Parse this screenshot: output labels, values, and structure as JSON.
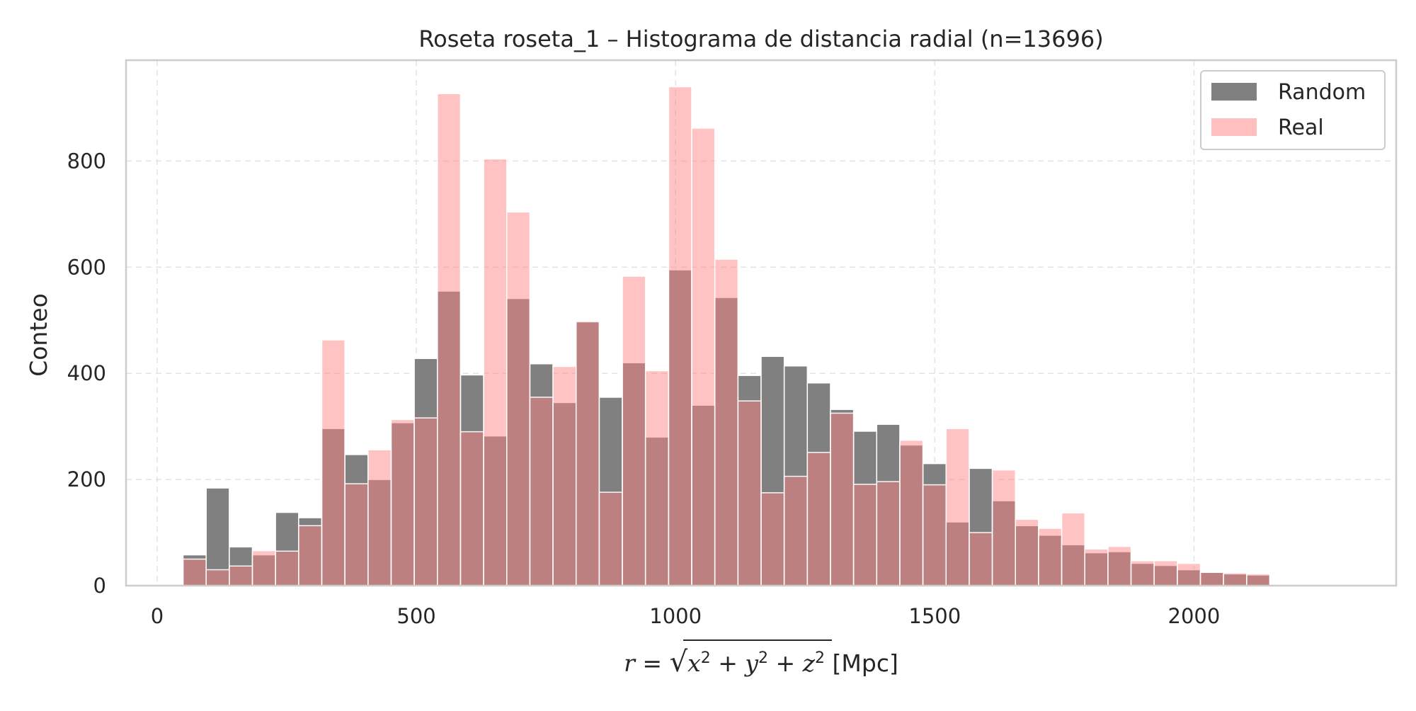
{
  "chart_data": {
    "type": "bar",
    "title": "Roseta roseta_1 – Histograma de distancia radial (n=13696)",
    "xlabel": "r = √(x² + y² + z²) [Mpc]",
    "ylabel": "Conteo",
    "xlim": [
      -60,
      2390
    ],
    "ylim": [
      0,
      990
    ],
    "xticks": [
      0,
      500,
      1000,
      1500,
      2000
    ],
    "yticks": [
      0,
      200,
      400,
      600,
      800
    ],
    "grid": true,
    "legend_position": "top-right",
    "bin_start": 50,
    "bin_width": 44.6,
    "series": [
      {
        "name": "Random",
        "color": "#808080",
        "values": [
          58,
          184,
          73,
          58,
          138,
          128,
          296,
          247,
          200,
          307,
          428,
          555,
          397,
          282,
          541,
          418,
          345,
          497,
          355,
          420,
          280,
          595,
          340,
          543,
          396,
          432,
          414,
          382,
          332,
          291,
          304,
          265,
          230,
          120,
          221,
          160,
          113,
          95,
          77,
          62,
          64,
          42,
          38,
          30,
          25,
          22,
          20
        ]
      },
      {
        "name": "Real",
        "color": "#ff7f7f",
        "values": [
          50,
          30,
          37,
          66,
          65,
          113,
          463,
          192,
          256,
          313,
          316,
          927,
          290,
          804,
          704,
          355,
          413,
          498,
          176,
          583,
          405,
          940,
          862,
          615,
          348,
          175,
          206,
          251,
          325,
          191,
          196,
          274,
          190,
          296,
          100,
          218,
          125,
          108,
          137,
          69,
          74,
          47,
          47,
          42,
          25,
          24,
          22
        ]
      }
    ]
  }
}
